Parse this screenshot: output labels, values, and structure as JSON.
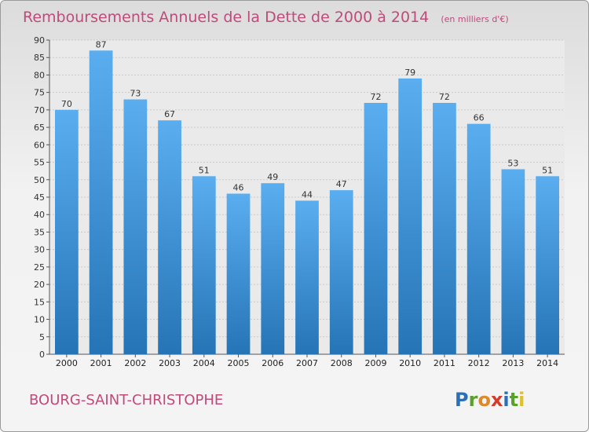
{
  "chart_data": {
    "type": "bar",
    "title": "Remboursements Annuels de la Dette de 2000 à 2014",
    "subtitle": "(en milliers d'€)",
    "categories": [
      "2000",
      "2001",
      "2002",
      "2003",
      "2004",
      "2005",
      "2006",
      "2007",
      "2008",
      "2009",
      "2010",
      "2011",
      "2012",
      "2013",
      "2014"
    ],
    "values": [
      70,
      87,
      73,
      67,
      51,
      46,
      49,
      44,
      47,
      72,
      79,
      72,
      66,
      53,
      51
    ],
    "ylim": [
      0,
      90
    ],
    "yticks": [
      0,
      5,
      10,
      15,
      20,
      25,
      30,
      35,
      40,
      45,
      50,
      55,
      60,
      65,
      70,
      75,
      80,
      85,
      90
    ],
    "xlabel": "",
    "ylabel": "",
    "grid": true,
    "colors": {
      "bar_top": "#5aaef0",
      "bar_bottom": "#2574b6",
      "title": "#c04a7a"
    }
  },
  "footer": {
    "commune": "BOURG-SAINT-CHRISTOPHE",
    "logo_letters": [
      "P",
      "r",
      "o",
      "x",
      "i",
      "t",
      "i"
    ],
    "logo_colors": [
      "#2b6fb6",
      "#5aa02c",
      "#e0872a",
      "#d63a2a",
      "#2b6fb6",
      "#5aa02c",
      "#e0c12a"
    ]
  }
}
